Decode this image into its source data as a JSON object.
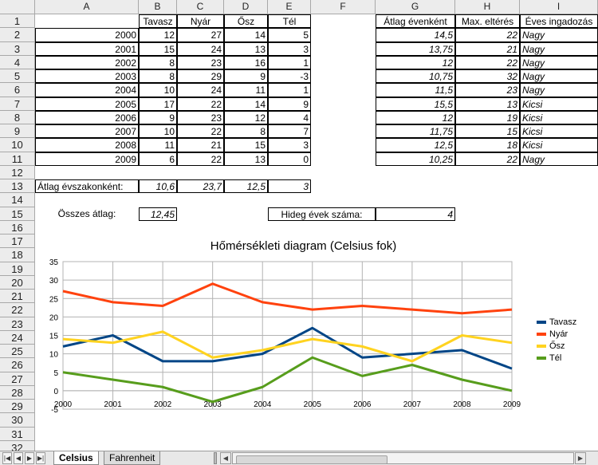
{
  "columns": [
    "A",
    "B",
    "C",
    "D",
    "E",
    "F",
    "G",
    "H",
    "I"
  ],
  "rows": [
    "1",
    "2",
    "3",
    "4",
    "5",
    "6",
    "7",
    "8",
    "9",
    "10",
    "11",
    "12",
    "13",
    "14",
    "15",
    "16",
    "17",
    "18",
    "19",
    "20",
    "21",
    "22",
    "23",
    "24",
    "25",
    "26",
    "27",
    "28",
    "29",
    "30",
    "31",
    "32"
  ],
  "header": {
    "b": "Tavasz",
    "c": "Nyár",
    "d": "Ősz",
    "e": "Tél",
    "g": "Átlag évenként",
    "h": "Max. eltérés",
    "i": "Éves ingadozás"
  },
  "data_rows": [
    {
      "year": "2000",
      "b": "12",
      "c": "27",
      "d": "14",
      "e": "5",
      "g": "14,5",
      "h": "22",
      "i": "Nagy"
    },
    {
      "year": "2001",
      "b": "15",
      "c": "24",
      "d": "13",
      "e": "3",
      "g": "13,75",
      "h": "21",
      "i": "Nagy"
    },
    {
      "year": "2002",
      "b": "8",
      "c": "23",
      "d": "16",
      "e": "1",
      "g": "12",
      "h": "22",
      "i": "Nagy"
    },
    {
      "year": "2003",
      "b": "8",
      "c": "29",
      "d": "9",
      "e": "-3",
      "g": "10,75",
      "h": "32",
      "i": "Nagy"
    },
    {
      "year": "2004",
      "b": "10",
      "c": "24",
      "d": "11",
      "e": "1",
      "g": "11,5",
      "h": "23",
      "i": "Nagy"
    },
    {
      "year": "2005",
      "b": "17",
      "c": "22",
      "d": "14",
      "e": "9",
      "g": "15,5",
      "h": "13",
      "i": "Kicsi"
    },
    {
      "year": "2006",
      "b": "9",
      "c": "23",
      "d": "12",
      "e": "4",
      "g": "12",
      "h": "19",
      "i": "Kicsi"
    },
    {
      "year": "2007",
      "b": "10",
      "c": "22",
      "d": "8",
      "e": "7",
      "g": "11,75",
      "h": "15",
      "i": "Kicsi"
    },
    {
      "year": "2008",
      "b": "11",
      "c": "21",
      "d": "15",
      "e": "3",
      "g": "12,5",
      "h": "18",
      "i": "Kicsi"
    },
    {
      "year": "2009",
      "b": "6",
      "c": "22",
      "d": "13",
      "e": "0",
      "g": "10,25",
      "h": "22",
      "i": "Nagy"
    }
  ],
  "summary": {
    "avg_label": "Átlag évszakonként:",
    "avg_b": "10,6",
    "avg_c": "23,7",
    "avg_d": "12,5",
    "avg_e": "3",
    "total_label": "Összes átlag:",
    "total_value": "12,45",
    "cold_label": "Hideg évek száma:",
    "cold_value": "4"
  },
  "chart_data": {
    "type": "line",
    "title": "Hőmérsékleti diagram (Celsius fok)",
    "x": [
      "2000",
      "2001",
      "2002",
      "2003",
      "2004",
      "2005",
      "2006",
      "2007",
      "2008",
      "2009"
    ],
    "ylim": [
      -5,
      35
    ],
    "yticks": [
      "-5",
      "0",
      "5",
      "10",
      "15",
      "20",
      "25",
      "30",
      "35"
    ],
    "grid": true,
    "legend": "right",
    "series": [
      {
        "name": "Tavasz",
        "color": "#004586",
        "values": [
          12,
          15,
          8,
          8,
          10,
          17,
          9,
          10,
          11,
          6
        ]
      },
      {
        "name": "Nyár",
        "color": "#ff420e",
        "values": [
          27,
          24,
          23,
          29,
          24,
          22,
          23,
          22,
          21,
          22
        ]
      },
      {
        "name": "Ősz",
        "color": "#ffd320",
        "values": [
          14,
          13,
          16,
          9,
          11,
          14,
          12,
          8,
          15,
          13
        ]
      },
      {
        "name": "Tél",
        "color": "#579d1c",
        "values": [
          5,
          3,
          1,
          -3,
          1,
          9,
          4,
          7,
          3,
          0
        ]
      }
    ]
  },
  "tabs": [
    {
      "label": "Celsius",
      "active": true
    },
    {
      "label": "Fahrenheit",
      "active": false
    }
  ]
}
